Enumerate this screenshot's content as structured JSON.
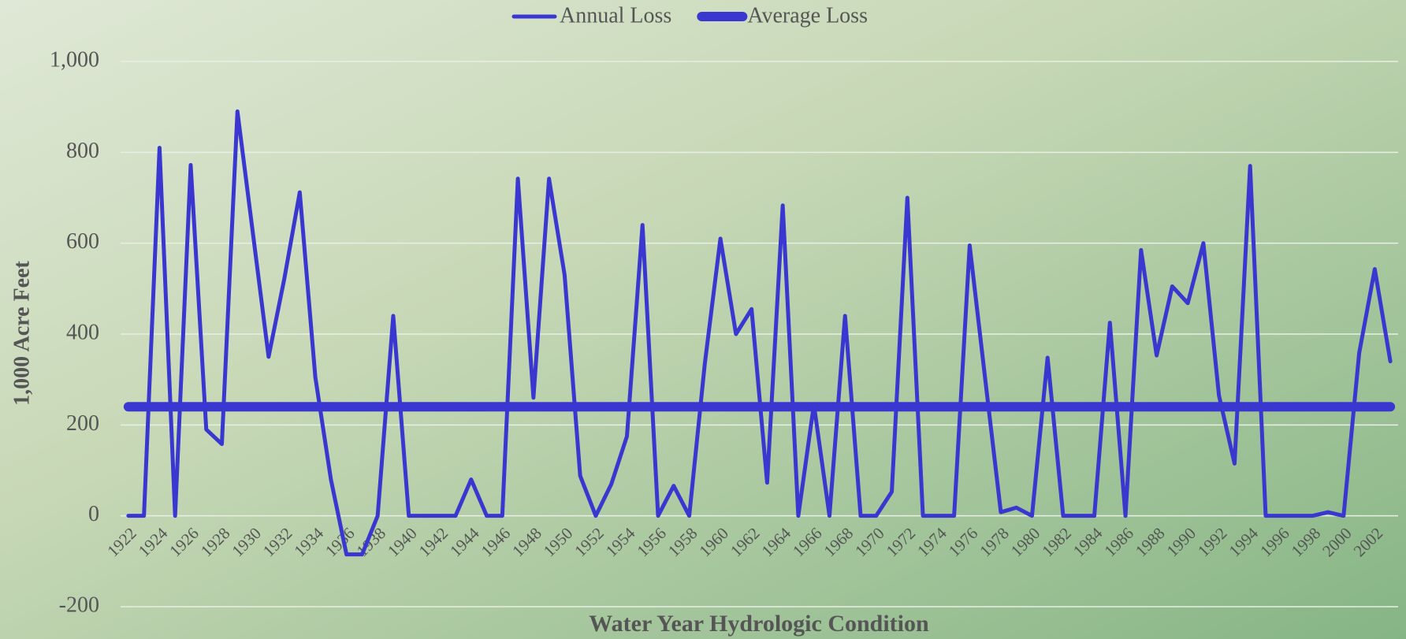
{
  "chart_data": {
    "type": "line",
    "x_label": "Water Year Hydrologic Condition",
    "y_label": "1,000 Acre Feet",
    "x": [
      1922,
      1923,
      1924,
      1925,
      1926,
      1927,
      1928,
      1929,
      1930,
      1931,
      1932,
      1933,
      1934,
      1935,
      1936,
      1937,
      1938,
      1939,
      1940,
      1941,
      1942,
      1943,
      1944,
      1945,
      1946,
      1947,
      1948,
      1949,
      1950,
      1951,
      1952,
      1953,
      1954,
      1955,
      1956,
      1957,
      1958,
      1959,
      1960,
      1961,
      1962,
      1963,
      1964,
      1965,
      1966,
      1967,
      1968,
      1969,
      1970,
      1971,
      1972,
      1973,
      1974,
      1975,
      1976,
      1977,
      1978,
      1979,
      1980,
      1981,
      1982,
      1983,
      1984,
      1985,
      1986,
      1987,
      1988,
      1989,
      1990,
      1991,
      1992,
      1993,
      1994,
      1995,
      1996,
      1997,
      1998,
      1999,
      2000,
      2001,
      2002,
      2003
    ],
    "series": [
      {
        "name": "Annual Loss",
        "color": "#3a36d0",
        "values": [
          0,
          0,
          810,
          0,
          772,
          190,
          158,
          890,
          620,
          350,
          520,
          712,
          305,
          80,
          -85,
          -85,
          0,
          440,
          0,
          0,
          0,
          0,
          80,
          0,
          0,
          742,
          260,
          742,
          530,
          88,
          0,
          70,
          175,
          640,
          0,
          66,
          0,
          335,
          610,
          400,
          455,
          73,
          683,
          0,
          245,
          0,
          440,
          0,
          0,
          53,
          700,
          0,
          0,
          0,
          595,
          300,
          8,
          18,
          0,
          348,
          0,
          0,
          0,
          425,
          0,
          585,
          353,
          505,
          468,
          600,
          265,
          115,
          770,
          0,
          0,
          0,
          0,
          8,
          0,
          358,
          543,
          340
        ]
      },
      {
        "name": "Average Loss",
        "color": "#3a36d0",
        "values": [
          240,
          240,
          240,
          240,
          240,
          240,
          240,
          240,
          240,
          240,
          240,
          240,
          240,
          240,
          240,
          240,
          240,
          240,
          240,
          240,
          240,
          240,
          240,
          240,
          240,
          240,
          240,
          240,
          240,
          240,
          240,
          240,
          240,
          240,
          240,
          240,
          240,
          240,
          240,
          240,
          240,
          240,
          240,
          240,
          240,
          240,
          240,
          240,
          240,
          240,
          240,
          240,
          240,
          240,
          240,
          240,
          240,
          240,
          240,
          240,
          240,
          240,
          240,
          240,
          240,
          240,
          240,
          240,
          240,
          240,
          240,
          240,
          240,
          240,
          240,
          240,
          240,
          240,
          240,
          240,
          240,
          240
        ]
      }
    ],
    "xlim": [
      1921.5,
      2003.5
    ],
    "xticks": [
      1922,
      1924,
      1926,
      1928,
      1930,
      1932,
      1934,
      1936,
      1938,
      1940,
      1942,
      1944,
      1946,
      1948,
      1950,
      1952,
      1954,
      1956,
      1958,
      1960,
      1962,
      1964,
      1966,
      1968,
      1970,
      1972,
      1974,
      1976,
      1978,
      1980,
      1982,
      1984,
      1986,
      1988,
      1990,
      1992,
      1994,
      1996,
      1998,
      2000,
      2002
    ],
    "ylim": [
      -200,
      1000
    ],
    "yticks": [
      -200,
      0,
      200,
      400,
      600,
      800,
      {
        "value": 1000,
        "label": "1,000"
      }
    ],
    "grid": true,
    "legend": "top"
  }
}
